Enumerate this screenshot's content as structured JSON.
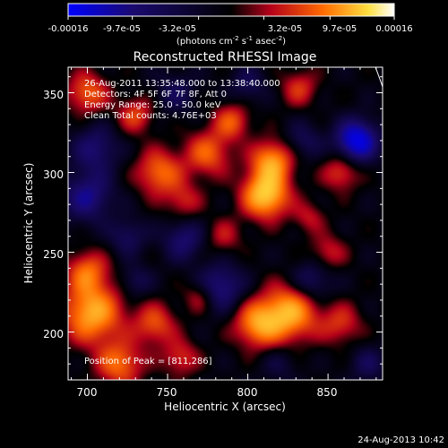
{
  "colorbar": {
    "tick_labels": [
      "-0.00016",
      "-9.7e-05",
      "-3.2e-05",
      "3.2e-05",
      "9.7e-05",
      "0.00016"
    ],
    "tick_values": [
      -0.00016,
      -9.7e-05,
      -3.2e-05,
      3.2e-05,
      9.7e-05,
      0.00016
    ],
    "range": [
      -0.00016,
      0.00016
    ],
    "unit_main": "(photons cm",
    "unit_exp1": "-2",
    "unit_mid": " s",
    "unit_exp2": "-1",
    "unit_mid2": " asec",
    "unit_exp3": "-2",
    "unit_end": ")",
    "colors": [
      "#0000ff",
      "#1a0a6e",
      "#000000",
      "#b4001a",
      "#ff6a00",
      "#ffe040",
      "#ffffff"
    ]
  },
  "header": {
    "info_lines": [
      "26-Aug-2011 13:35:48.000 to 13:38:40.000",
      "Detectors: 4F 5F 6F 7F 8F, Att 0",
      "Energy Range: 25.0 - 50.0 keV",
      "Clean     Total counts: 4.76E+03"
    ],
    "peak_text": "Position of Peak = [811,286]"
  },
  "footer": {
    "timestamp": "24-Aug-2013 10:42"
  },
  "chart_data": {
    "type": "heatmap",
    "title": "Reconstructed RHESSI Image",
    "xlabel": "Heliocentric X (arcsec)",
    "ylabel": "Heliocentric Y (arcsec)",
    "xlim": [
      688,
      884
    ],
    "ylim": [
      170,
      366
    ],
    "x_ticks": [
      700,
      750,
      800,
      850
    ],
    "y_ticks": [
      200,
      250,
      300,
      350
    ],
    "peak": [
      811,
      286
    ],
    "blobs": [
      {
        "x": 811,
        "y": 286,
        "amp": 1.0,
        "sigma": 10
      },
      {
        "x": 815,
        "y": 307,
        "amp": 0.75,
        "sigma": 9
      },
      {
        "x": 826,
        "y": 212,
        "amp": 0.85,
        "sigma": 12
      },
      {
        "x": 806,
        "y": 205,
        "amp": 0.7,
        "sigma": 10
      },
      {
        "x": 703,
        "y": 212,
        "amp": 0.85,
        "sigma": 13
      },
      {
        "x": 700,
        "y": 238,
        "amp": 0.55,
        "sigma": 9
      },
      {
        "x": 720,
        "y": 180,
        "amp": 0.6,
        "sigma": 10
      },
      {
        "x": 700,
        "y": 350,
        "amp": 0.55,
        "sigma": 9
      },
      {
        "x": 730,
        "y": 336,
        "amp": 0.45,
        "sigma": 8
      },
      {
        "x": 745,
        "y": 300,
        "amp": 0.6,
        "sigma": 10
      },
      {
        "x": 775,
        "y": 312,
        "amp": 0.55,
        "sigma": 10
      },
      {
        "x": 790,
        "y": 332,
        "amp": 0.5,
        "sigma": 8
      },
      {
        "x": 760,
        "y": 282,
        "amp": 0.35,
        "sigma": 8
      },
      {
        "x": 742,
        "y": 205,
        "amp": 0.5,
        "sigma": 9
      },
      {
        "x": 758,
        "y": 184,
        "amp": 0.4,
        "sigma": 8
      },
      {
        "x": 770,
        "y": 222,
        "amp": 0.35,
        "sigma": 7
      },
      {
        "x": 850,
        "y": 250,
        "amp": 0.35,
        "sigma": 8
      },
      {
        "x": 858,
        "y": 205,
        "amp": 0.4,
        "sigma": 9
      },
      {
        "x": 858,
        "y": 300,
        "amp": 0.45,
        "sigma": 8
      },
      {
        "x": 832,
        "y": 353,
        "amp": 0.4,
        "sigma": 8
      },
      {
        "x": 838,
        "y": 272,
        "amp": 0.3,
        "sigma": 7
      },
      {
        "x": 785,
        "y": 260,
        "amp": 0.3,
        "sigma": 8
      },
      {
        "x": 868,
        "y": 320,
        "amp": -0.95,
        "sigma": 9
      },
      {
        "x": 700,
        "y": 285,
        "amp": -0.55,
        "sigma": 11
      },
      {
        "x": 705,
        "y": 315,
        "amp": -0.45,
        "sigma": 10
      },
      {
        "x": 783,
        "y": 228,
        "amp": -0.55,
        "sigma": 10
      },
      {
        "x": 760,
        "y": 258,
        "amp": -0.45,
        "sigma": 9
      },
      {
        "x": 725,
        "y": 260,
        "amp": -0.35,
        "sigma": 8
      },
      {
        "x": 840,
        "y": 232,
        "amp": -0.4,
        "sigma": 9
      },
      {
        "x": 835,
        "y": 320,
        "amp": -0.3,
        "sigma": 8
      },
      {
        "x": 800,
        "y": 355,
        "amp": -0.3,
        "sigma": 8
      },
      {
        "x": 755,
        "y": 350,
        "amp": -0.3,
        "sigma": 9
      },
      {
        "x": 875,
        "y": 180,
        "amp": -0.3,
        "sigma": 8
      },
      {
        "x": 820,
        "y": 180,
        "amp": -0.2,
        "sigma": 8
      },
      {
        "x": 730,
        "y": 232,
        "amp": -0.3,
        "sigma": 7
      }
    ]
  }
}
